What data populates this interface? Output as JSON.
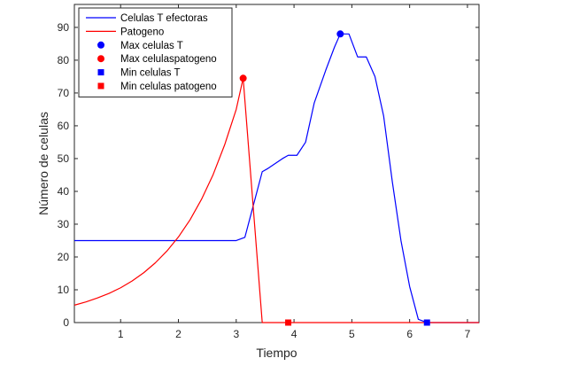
{
  "chart_data": {
    "type": "line",
    "xlabel": "Tiempo",
    "ylabel": "Número de celulas",
    "xlim": [
      0.2,
      7.2
    ],
    "ylim": [
      0,
      97
    ],
    "xticks": [
      1,
      2,
      3,
      4,
      5,
      6,
      7
    ],
    "yticks": [
      0,
      10,
      20,
      30,
      40,
      50,
      60,
      70,
      80,
      90
    ],
    "grid": false,
    "legend_position": "top-left",
    "series": [
      {
        "name": "Celulas T efectoras",
        "color": "#0000ff",
        "style": "line",
        "x": [
          0.2,
          0.5,
          1.0,
          1.5,
          2.0,
          2.5,
          3.0,
          3.15,
          3.45,
          3.55,
          3.8,
          3.9,
          4.05,
          4.2,
          4.35,
          4.55,
          4.7,
          4.8,
          4.95,
          5.1,
          5.25,
          5.4,
          5.55,
          5.7,
          5.85,
          6.0,
          6.15,
          6.3,
          7.2
        ],
        "y": [
          25,
          25,
          25,
          25,
          25,
          25,
          25,
          26,
          46,
          47,
          50,
          51,
          51,
          55,
          67,
          77,
          84,
          88,
          88,
          81,
          81,
          75,
          63,
          43,
          25,
          11,
          1,
          0,
          0
        ]
      },
      {
        "name": "Patogeno",
        "color": "#ff0000",
        "style": "line",
        "x": [
          0.2,
          0.4,
          0.6,
          0.8,
          1.0,
          1.2,
          1.4,
          1.6,
          1.8,
          2.0,
          2.2,
          2.4,
          2.6,
          2.8,
          3.0,
          3.12,
          3.45,
          3.5,
          7.2
        ],
        "y": [
          5.3,
          6.3,
          7.5,
          8.9,
          10.6,
          12.7,
          15.2,
          18.2,
          21.8,
          26.1,
          31.3,
          37.6,
          45.1,
          54.2,
          65.0,
          74.5,
          0,
          0,
          0
        ]
      },
      {
        "name": "Max celulas T",
        "color": "#0000ff",
        "style": "marker",
        "marker": "circle",
        "x": [
          4.8
        ],
        "y": [
          88
        ]
      },
      {
        "name": "Max celulaspatogeno",
        "color": "#ff0000",
        "style": "marker",
        "marker": "circle",
        "x": [
          3.12
        ],
        "y": [
          74.5
        ]
      },
      {
        "name": "Min celulas T",
        "color": "#0000ff",
        "style": "marker",
        "marker": "square",
        "x": [
          6.3
        ],
        "y": [
          0
        ]
      },
      {
        "name": "Min celulas patogeno",
        "color": "#ff0000",
        "style": "marker",
        "marker": "square",
        "x": [
          3.9
        ],
        "y": [
          0
        ]
      }
    ]
  }
}
